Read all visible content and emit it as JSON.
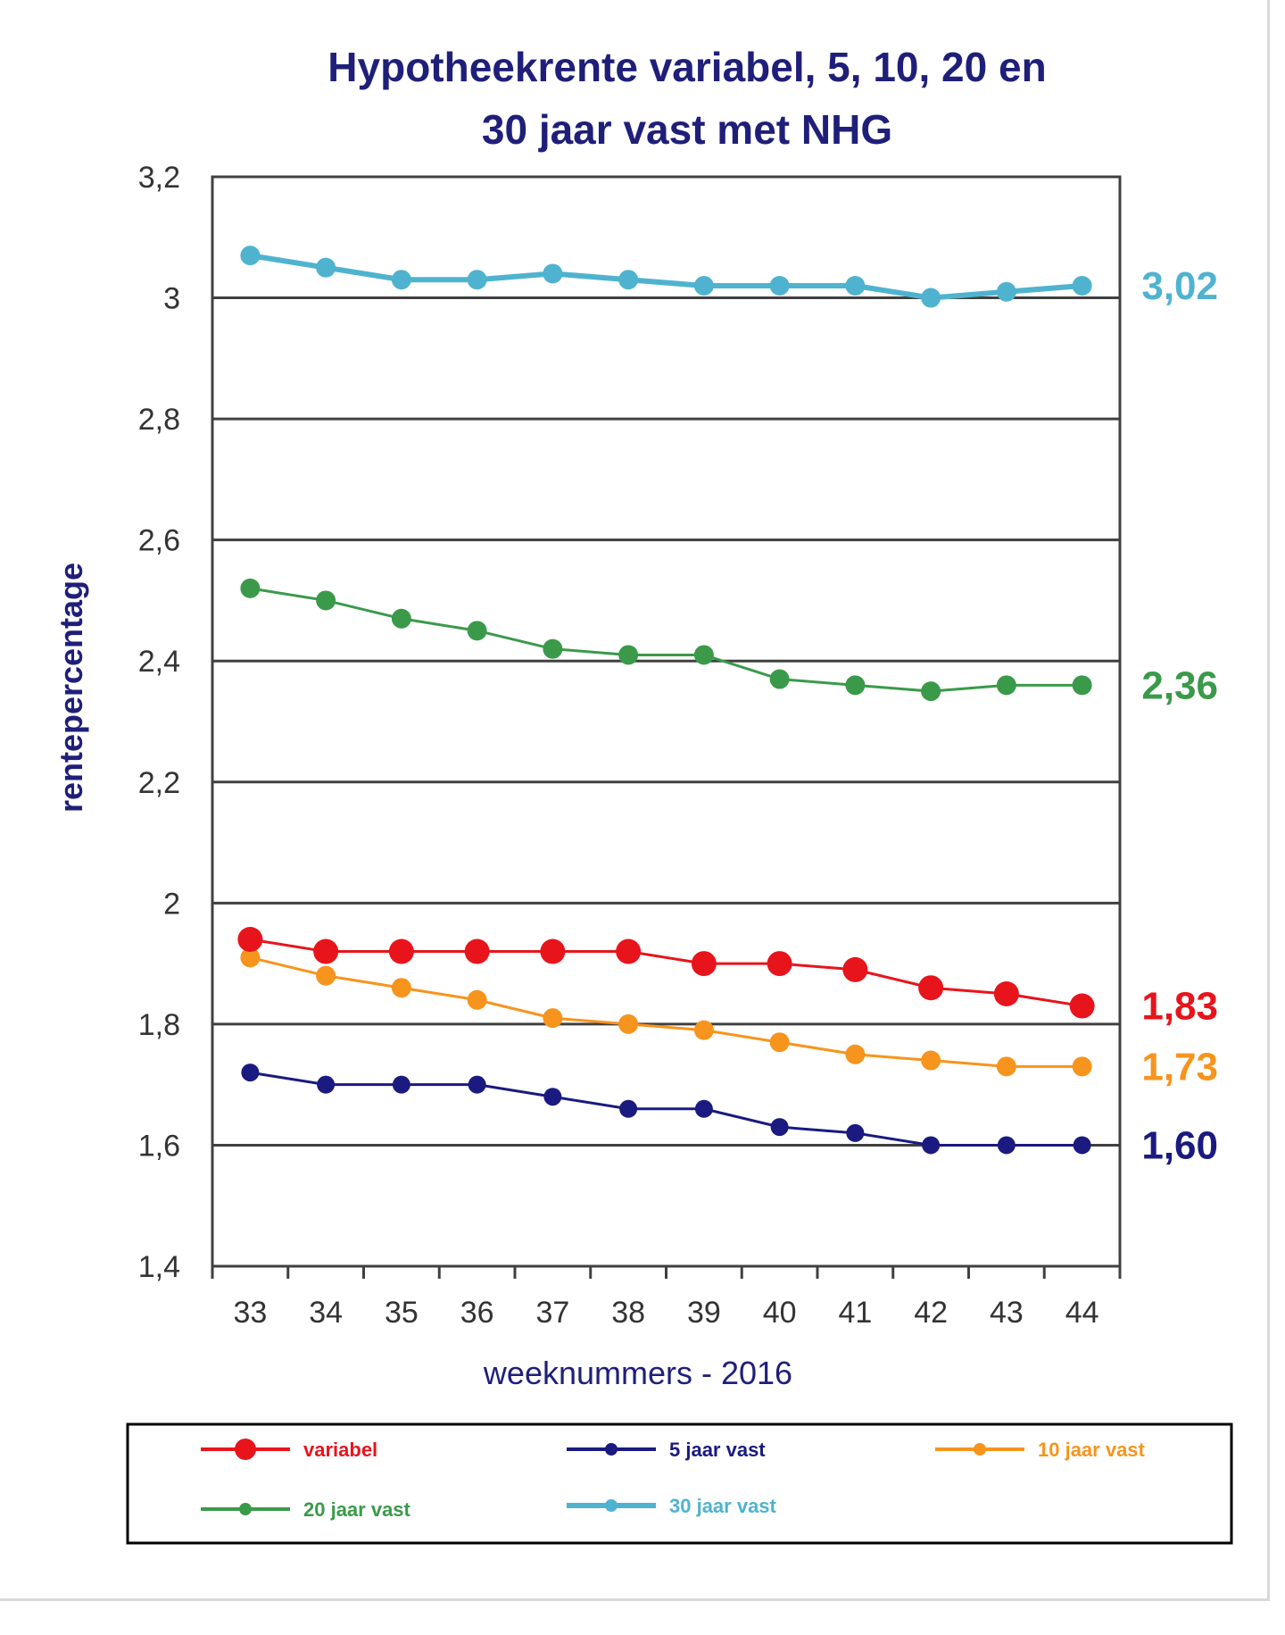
{
  "colors": {
    "variabel": "#e8141b",
    "5_jaar": "#1a1a80",
    "10_jaar": "#f7941d",
    "20_jaar": "#3a9a4a",
    "30_jaar": "#4fb3cf",
    "title": "#1f1f7a"
  },
  "chart_data": {
    "type": "line",
    "title_line1": "Hypotheekrente variabel, 5, 10, 20 en",
    "title_line2": "30 jaar vast met NHG",
    "xlabel": "weeknummers - 2016",
    "ylabel": "rentepercentage",
    "categories": [
      "33",
      "34",
      "35",
      "36",
      "37",
      "38",
      "39",
      "40",
      "41",
      "42",
      "43",
      "44"
    ],
    "ylim": [
      1.4,
      3.2
    ],
    "yticks": [
      "1,4",
      "1,6",
      "1,8",
      "2",
      "2,2",
      "2,4",
      "2,6",
      "2,8",
      "3",
      "3,2"
    ],
    "grid": true,
    "legend_position": "bottom",
    "series": [
      {
        "key": "variabel",
        "name": "variabel",
        "values": [
          1.94,
          1.92,
          1.92,
          1.92,
          1.92,
          1.92,
          1.9,
          1.9,
          1.89,
          1.86,
          1.85,
          1.83
        ],
        "end_label": "1,83"
      },
      {
        "key": "5_jaar",
        "name": "5 jaar vast",
        "values": [
          1.72,
          1.7,
          1.7,
          1.7,
          1.68,
          1.66,
          1.66,
          1.63,
          1.62,
          1.6,
          1.6,
          1.6
        ],
        "end_label": "1,60"
      },
      {
        "key": "10_jaar",
        "name": "10 jaar vast",
        "values": [
          1.91,
          1.88,
          1.86,
          1.84,
          1.81,
          1.8,
          1.79,
          1.77,
          1.75,
          1.74,
          1.73,
          1.73
        ],
        "end_label": "1,73"
      },
      {
        "key": "20_jaar",
        "name": "20 jaar vast",
        "values": [
          2.52,
          2.5,
          2.47,
          2.45,
          2.42,
          2.41,
          2.41,
          2.37,
          2.36,
          2.35,
          2.36,
          2.36
        ],
        "end_label": "2,36"
      },
      {
        "key": "30_jaar",
        "name": "30 jaar vast",
        "values": [
          3.07,
          3.05,
          3.03,
          3.03,
          3.04,
          3.03,
          3.02,
          3.02,
          3.02,
          3.0,
          3.01,
          3.02
        ],
        "end_label": "3,02"
      }
    ]
  }
}
